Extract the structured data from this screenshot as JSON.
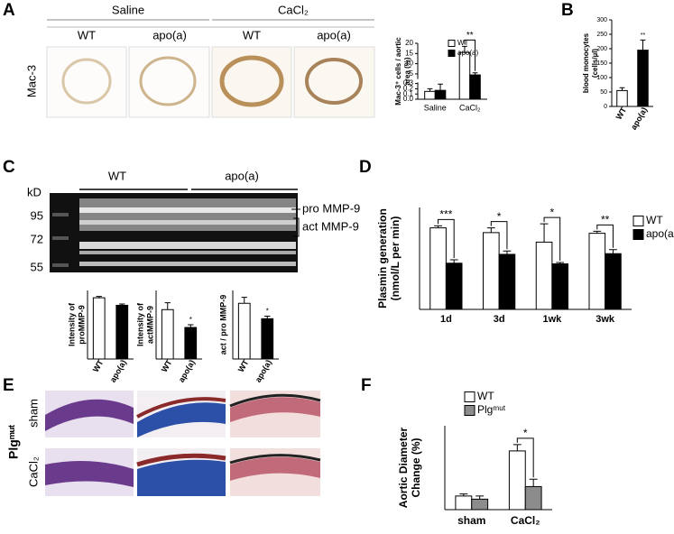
{
  "panels": {
    "letters": [
      "A",
      "B",
      "C",
      "D",
      "E",
      "F"
    ],
    "A": {
      "stain": "Mac-3",
      "groups": [
        "Saline",
        "CaCl₂"
      ],
      "genotypes": [
        "WT",
        "apo(a)",
        "WT",
        "apo(a)"
      ]
    },
    "C": {
      "size_unit": "kD",
      "sizes": [
        95,
        72,
        55
      ],
      "groups": [
        "WT",
        "apo(a)"
      ],
      "bands": [
        "pro MMP-9",
        "act MMP-9"
      ]
    },
    "E": {
      "genotype": "Plgᵐᵘᵗ",
      "rows": [
        "sham",
        "CaCl₂"
      ]
    }
  },
  "chart_data": [
    {
      "type": "bar",
      "ylabel": [
        "Mac-3⁺ cells / aortic",
        "area (%)"
      ],
      "categories": [
        "Saline",
        "CaCl₂"
      ],
      "series": [
        {
          "name": "WT",
          "color": "#ffffff",
          "values": [
            0.15,
            15.5
          ],
          "errors": [
            0.05,
            3
          ]
        },
        {
          "name": "apo(a)",
          "color": "#000000",
          "values": [
            0.17,
            4.5
          ],
          "errors": [
            0.12,
            1
          ]
        }
      ],
      "ylim": [
        0,
        20
      ],
      "y_break": [
        0.3,
        3
      ],
      "yticks": [
        {
          "value": 0,
          "label": "0.0"
        },
        0.1,
        0.2,
        0.3,
        5,
        10,
        15,
        20
      ],
      "annotations": [
        null,
        "**"
      ]
    },
    {
      "type": "bar",
      "ylabel": [
        "blood monocytes",
        "(cells/µl)"
      ],
      "categories": [
        "WT",
        "apo(a)"
      ],
      "series": [
        {
          "colors": [
            "#ffffff",
            "#000000"
          ],
          "values": [
            55,
            195
          ],
          "errors": [
            10,
            35
          ]
        }
      ],
      "ylim": [
        0,
        300
      ],
      "yticks": [
        0,
        50,
        100,
        150,
        200,
        250,
        300
      ],
      "annotations": [
        null,
        "**"
      ]
    },
    {
      "type": "bar",
      "ylabel": [
        "Intensity of",
        "proMMP-9"
      ],
      "categories": [
        "WT",
        "apo(a)"
      ],
      "series": [
        {
          "colors": [
            "#ffffff",
            "#000000"
          ],
          "values": [
            268,
            235
          ],
          "errors": [
            6,
            6
          ]
        }
      ],
      "ylim": [
        0,
        300
      ]
    },
    {
      "type": "bar",
      "ylabel": [
        "Intensity of",
        "actMMP-9"
      ],
      "categories": [
        "WT",
        "apo(a)"
      ],
      "series": [
        {
          "colors": [
            "#ffffff",
            "#000000"
          ],
          "values": [
            180,
            115
          ],
          "errors": [
            25,
            10
          ]
        }
      ],
      "ylim": [
        0,
        250
      ],
      "annotations": [
        null,
        "*"
      ]
    },
    {
      "type": "bar",
      "ylabel": [
        "act / pro MMP-9"
      ],
      "categories": [
        "WT",
        "apo(a)"
      ],
      "series": [
        {
          "colors": [
            "#ffffff",
            "#000000"
          ],
          "values": [
            0.65,
            0.47
          ],
          "errors": [
            0.07,
            0.03
          ]
        }
      ],
      "ylim": [
        0,
        0.8
      ],
      "annotations": [
        null,
        "*"
      ]
    },
    {
      "type": "bar",
      "ylabel": [
        "Plasmin generation",
        "(nmol/L per min)"
      ],
      "categories": [
        "1d",
        "3d",
        "1wk",
        "3wk"
      ],
      "series": [
        {
          "name": "WT",
          "color": "#ffffff",
          "values": [
            120,
            113,
            99,
            112
          ],
          "errors": [
            3,
            7,
            27,
            3
          ]
        },
        {
          "name": "apo(a)",
          "color": "#000000",
          "values": [
            68,
            81,
            67,
            82
          ],
          "errors": [
            5,
            5,
            2,
            6
          ]
        }
      ],
      "ylim": [
        0,
        150
      ],
      "annotations": [
        "***",
        "*",
        "*",
        "**"
      ]
    },
    {
      "type": "bar",
      "ylabel": [
        "Aortic Diameter",
        "Change (%)"
      ],
      "categories": [
        "sham",
        "CaCl₂"
      ],
      "series": [
        {
          "name": "WT",
          "color": "#ffffff",
          "values": [
            13,
            56
          ],
          "errors": [
            2,
            6
          ]
        },
        {
          "name": "Plgᵐᵘᵗ",
          "color": "#8c8c8c",
          "values": [
            10,
            22
          ],
          "errors": [
            3,
            7
          ]
        }
      ],
      "ylim": [
        0,
        80
      ],
      "annotations": [
        null,
        "*"
      ]
    }
  ]
}
